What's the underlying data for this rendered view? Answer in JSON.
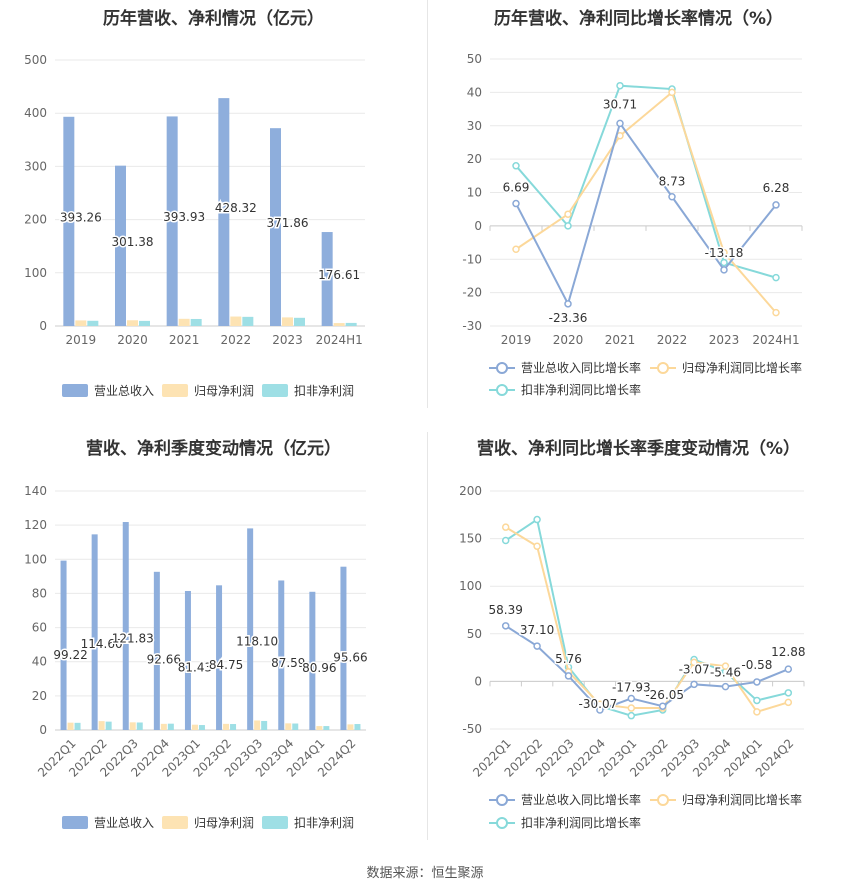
{
  "panel_titles": {
    "annual_bar": "历年营收、净利情况（亿元）",
    "annual_line": "历年营收、净利同比增长率情况（%）",
    "quarter_bar": "营收、净利季度变动情况（亿元）",
    "quarter_line": "营收、净利同比增长率季度变动情况（%）"
  },
  "source": "数据来源：恒生聚源",
  "colors": {
    "revenue_bar": "#8eaedc",
    "parent_profit_bar": "#fde3b3",
    "deducted_profit_bar": "#9edfe5",
    "revenue_line": "#8aa8d6",
    "parent_profit_line": "#fcd89a",
    "deducted_profit_line": "#86d9da"
  },
  "chart_data": [
    {
      "type": "bar",
      "categories": [
        "2019",
        "2020",
        "2021",
        "2022",
        "2023",
        "2024H1"
      ],
      "series": [
        {
          "name": "营业总收入",
          "values": [
            393.26,
            301.38,
            393.93,
            428.32,
            371.86,
            176.61
          ],
          "labels": [
            "393.26",
            "301.38",
            "393.93",
            "428.32",
            "371.86",
            "176.61"
          ]
        },
        {
          "name": "归母净利润",
          "values": [
            10.5,
            10.8,
            13.5,
            17.8,
            16.2,
            5.5
          ]
        },
        {
          "name": "扣非净利润",
          "values": [
            9.8,
            9.6,
            13.2,
            17.2,
            15.4,
            5.8
          ]
        }
      ],
      "yticks": [
        "0",
        "100",
        "200",
        "300",
        "400",
        "500"
      ],
      "ylim": [
        0,
        500
      ],
      "legend": "bottom"
    },
    {
      "type": "line",
      "categories": [
        "2019",
        "2020",
        "2021",
        "2022",
        "2023",
        "2024H1"
      ],
      "series": [
        {
          "name": "营业总收入同比增长率",
          "values": [
            6.69,
            -23.36,
            30.71,
            8.73,
            -13.18,
            6.28
          ],
          "labels": [
            "6.69",
            "-23.36",
            "30.71",
            "8.73",
            "-13.18",
            "6.28"
          ]
        },
        {
          "name": "归母净利润同比增长率",
          "values": [
            -7.0,
            3.5,
            27.0,
            40.0,
            -8.0,
            -26.0
          ]
        },
        {
          "name": "扣非净利润同比增长率",
          "values": [
            18.0,
            0.0,
            42.0,
            41.0,
            -11.0,
            -15.5
          ]
        }
      ],
      "yticks": [
        "-30",
        "-20",
        "-10",
        "0",
        "10",
        "20",
        "30",
        "40",
        "50"
      ],
      "ylim": [
        -30,
        50
      ],
      "legend": "bottom"
    },
    {
      "type": "bar",
      "categories": [
        "2022Q1",
        "2022Q2",
        "2022Q3",
        "2022Q4",
        "2023Q1",
        "2023Q2",
        "2023Q3",
        "2023Q4",
        "2024Q1",
        "2024Q2"
      ],
      "series": [
        {
          "name": "营业总收入",
          "values": [
            99.22,
            114.6,
            121.83,
            92.66,
            81.43,
            84.75,
            118.1,
            87.59,
            80.96,
            95.66
          ],
          "labels": [
            "99.22",
            "114.60",
            "121.83",
            "92.66",
            "81.43",
            "84.75",
            "118.10",
            "87.59",
            "80.96",
            "95.66"
          ]
        },
        {
          "name": "归母净利润",
          "values": [
            4.3,
            5.2,
            4.5,
            3.6,
            3.1,
            3.6,
            5.6,
            3.9,
            2.3,
            3.3
          ]
        },
        {
          "name": "扣非净利润",
          "values": [
            4.2,
            4.9,
            4.4,
            3.7,
            2.9,
            3.5,
            5.3,
            3.8,
            2.3,
            3.5
          ]
        }
      ],
      "yticks": [
        "0",
        "20",
        "40",
        "60",
        "80",
        "100",
        "120",
        "140"
      ],
      "ylim": [
        0,
        140
      ],
      "legend": "bottom"
    },
    {
      "type": "line",
      "categories": [
        "2022Q1",
        "2022Q2",
        "2022Q3",
        "2022Q4",
        "2023Q1",
        "2023Q2",
        "2023Q3",
        "2023Q4",
        "2024Q1",
        "2024Q2"
      ],
      "series": [
        {
          "name": "营业总收入同比增长率",
          "values": [
            58.39,
            37.1,
            5.76,
            -30.07,
            -17.93,
            -26.05,
            -3.07,
            -5.46,
            -0.58,
            12.88
          ],
          "labels": [
            "58.39",
            "37.10",
            "5.76",
            "-30.07",
            "-17.93",
            "-26.05",
            "-3.07",
            "-5.46",
            "-0.58",
            "12.88"
          ]
        },
        {
          "name": "归母净利润同比增长率",
          "values": [
            162,
            142,
            10,
            -24,
            -28,
            -28,
            20,
            16,
            -32,
            -22
          ]
        },
        {
          "name": "扣非净利润同比增长率",
          "values": [
            148,
            170,
            15,
            -26,
            -36,
            -30,
            23,
            10,
            -20,
            -12
          ]
        }
      ],
      "yticks": [
        "-50",
        "0",
        "50",
        "100",
        "150",
        "200"
      ],
      "ylim": [
        -50,
        200
      ],
      "legend": "bottom"
    }
  ]
}
